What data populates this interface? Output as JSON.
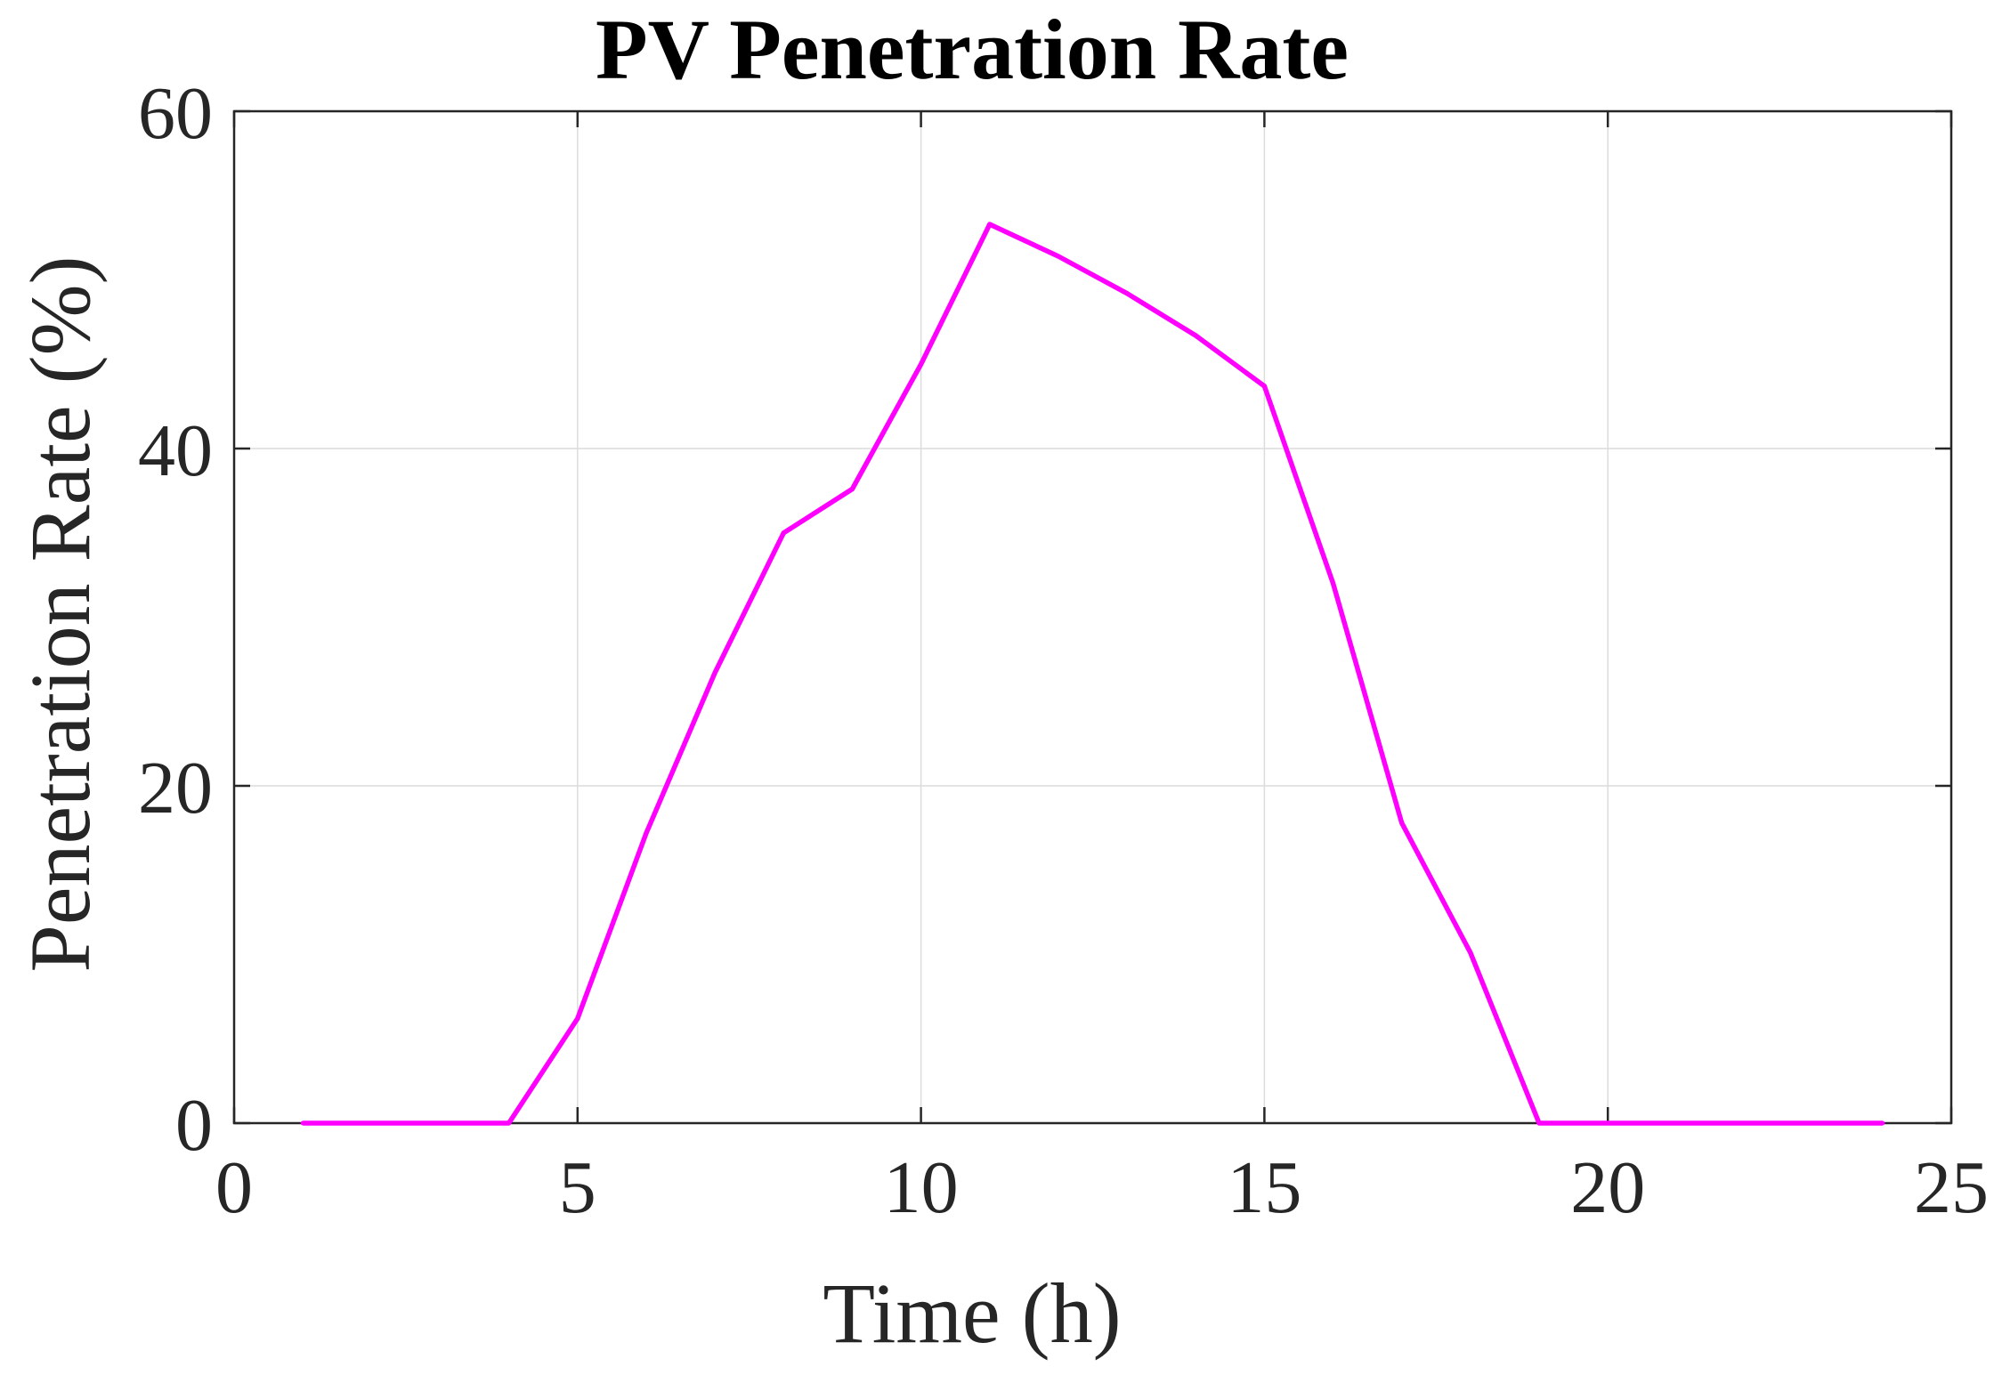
{
  "chart_data": {
    "type": "line",
    "title": "PV Penetration Rate",
    "xlabel": "Time (h)",
    "ylabel": "Penetration Rate (%)",
    "xlim": [
      0,
      25
    ],
    "ylim": [
      0,
      60
    ],
    "xticks": [
      0,
      5,
      10,
      15,
      20,
      25
    ],
    "yticks": [
      0,
      20,
      40,
      60
    ],
    "xtick_labels": [
      "0",
      "5",
      "10",
      "15",
      "20",
      "25"
    ],
    "ytick_labels": [
      "0",
      "20",
      "40",
      "60"
    ],
    "grid": true,
    "series": [
      {
        "name": "PV Penetration Rate",
        "color": "#ff00ff",
        "x": [
          1,
          2,
          3,
          4,
          5,
          6,
          7,
          8,
          9,
          10,
          11,
          12,
          13,
          14,
          15,
          16,
          17,
          18,
          19,
          20,
          21,
          22,
          23,
          24
        ],
        "values": [
          0,
          0,
          0,
          0,
          6.2,
          17.2,
          26.7,
          35.0,
          37.6,
          45.0,
          53.3,
          51.4,
          49.2,
          46.7,
          43.7,
          32.0,
          17.8,
          10.1,
          0,
          0,
          0,
          0,
          0,
          0
        ]
      }
    ]
  }
}
